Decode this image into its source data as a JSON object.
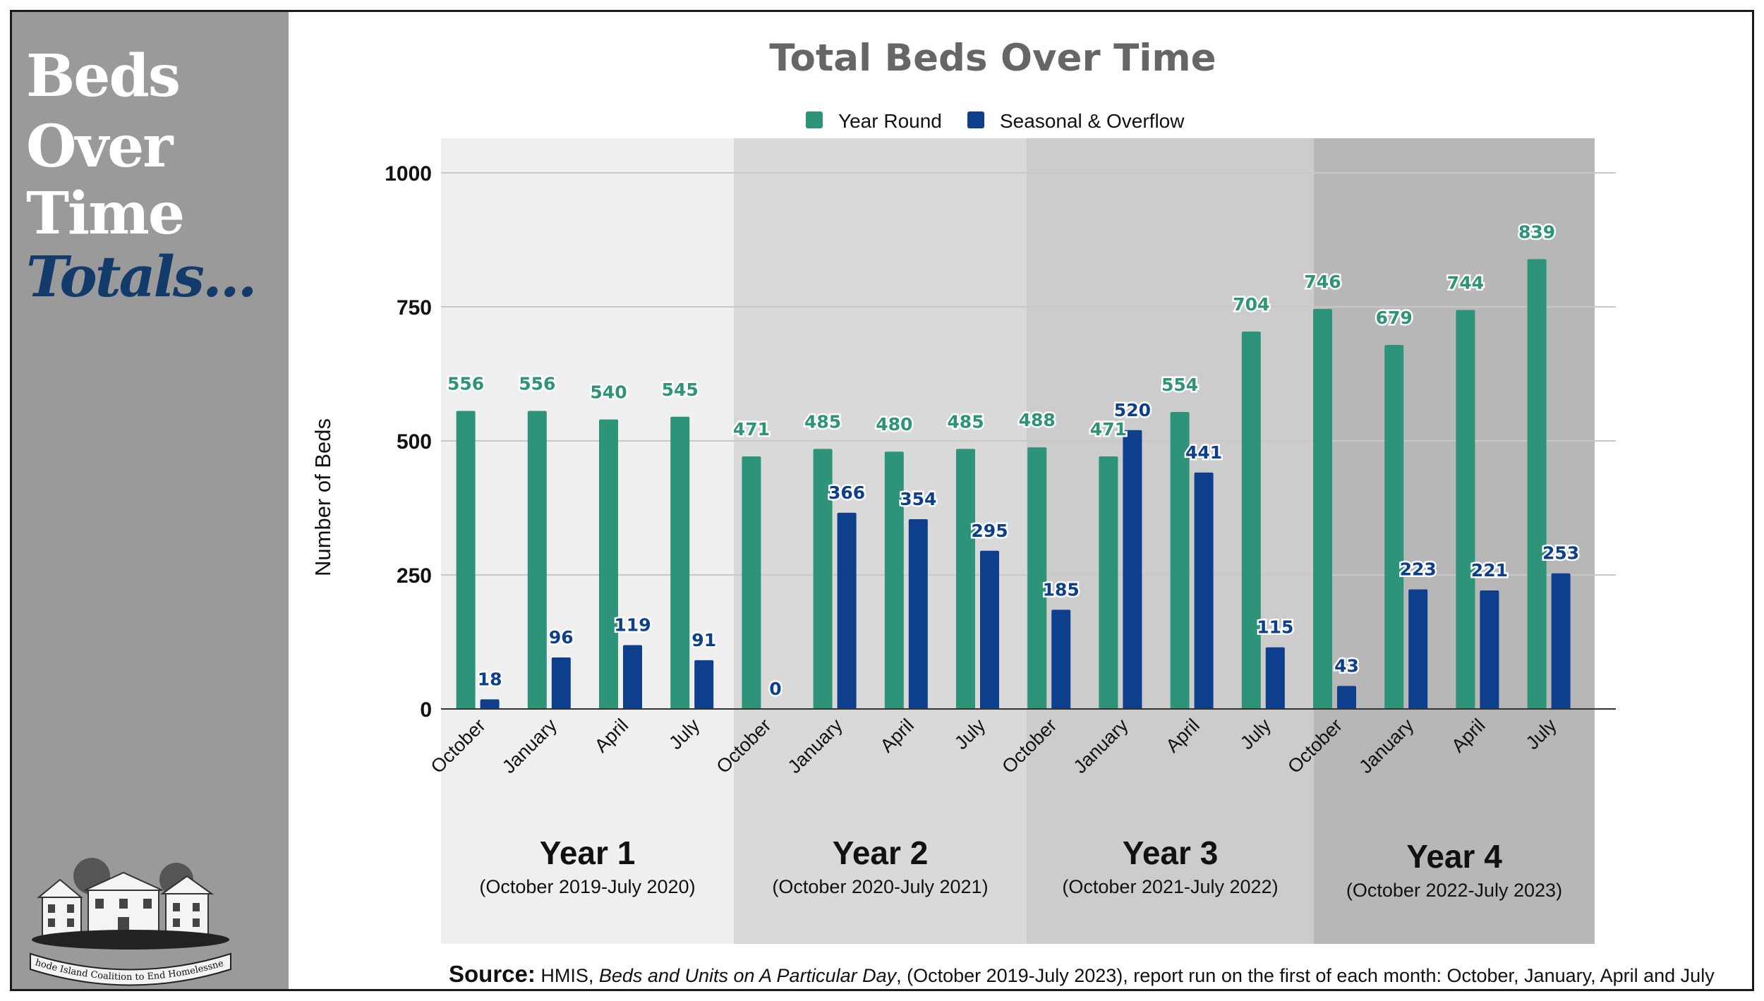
{
  "sidebar": {
    "words": [
      "Beds",
      "Over",
      "Time"
    ],
    "emphasis": "Totals...",
    "logo_text": "Rhode Island Coalition to End Homelessness"
  },
  "colors": {
    "year_round": "#2e9479",
    "seasonal": "#0d3f8c",
    "sidebar_bg": "#9a9a9a",
    "title": "#666666"
  },
  "chart_data": {
    "type": "bar",
    "title": "Total Beds Over Time",
    "ylabel": "Number of Beds",
    "xlabel": "",
    "ylim": [
      0,
      1000
    ],
    "yticks": [
      0,
      250,
      500,
      750,
      1000
    ],
    "grid": true,
    "legend": "top-center",
    "categories": [
      "October",
      "January",
      "April",
      "July",
      "October",
      "January",
      "April",
      "July",
      "October",
      "January",
      "April",
      "July",
      "October",
      "January",
      "April",
      "July"
    ],
    "series": [
      {
        "name": "Year Round",
        "values": [
          556,
          556,
          540,
          545,
          471,
          485,
          480,
          485,
          488,
          471,
          554,
          704,
          746,
          679,
          744,
          839
        ]
      },
      {
        "name": "Seasonal & Overflow",
        "values": [
          18,
          96,
          119,
          91,
          0,
          366,
          354,
          295,
          185,
          520,
          441,
          115,
          43,
          223,
          221,
          253
        ]
      }
    ],
    "groups": [
      {
        "label": "Year 1",
        "sublabel": "(October 2019-July 2020)",
        "shade": "#efefef"
      },
      {
        "label": "Year 2",
        "sublabel": "(October 2020-July 2021)",
        "shade": "#d9d9d9"
      },
      {
        "label": "Year 3",
        "sublabel": "(October 2021-July 2022)",
        "shade": "#cccccc"
      },
      {
        "label": "Year 4",
        "sublabel": "(October 2022-July 2023)",
        "shade": "#b7b7b7"
      }
    ]
  },
  "source": {
    "label": "Source:",
    "text_before": " HMIS, ",
    "italic": "Beds and Units on A Particular Day",
    "text_after": ", (October 2019-July 2023), report run on the first of each month: October, January, April and July"
  }
}
